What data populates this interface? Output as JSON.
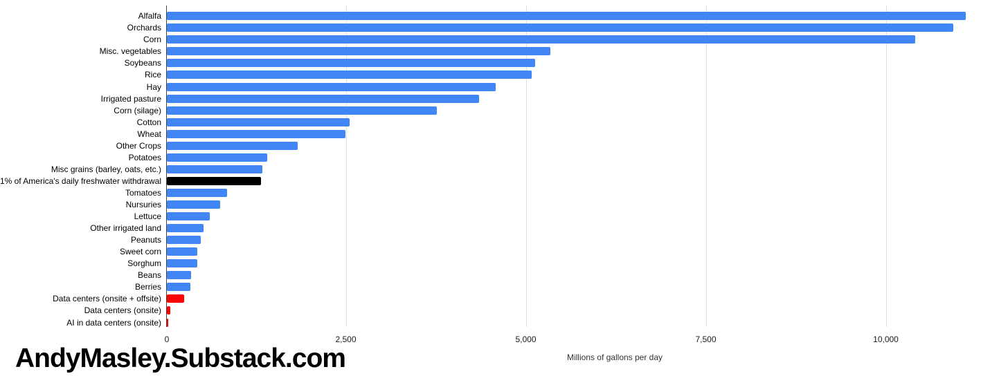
{
  "watermark": "AndyMasley.Substack.com",
  "axis": {
    "tick_labels": [
      "0",
      "2,500",
      "5,000",
      "7,500",
      "10,000"
    ]
  },
  "chart_data": {
    "type": "bar",
    "orientation": "horizontal",
    "title": "",
    "xlabel": "Millions of gallons per day",
    "ylabel": "",
    "xlim": [
      0,
      11700
    ],
    "xticks": [
      0,
      2500,
      5000,
      7500,
      10000
    ],
    "grid": true,
    "legend": "none",
    "categories": [
      "Alfalfa",
      "Orchards",
      "Corn",
      "Misc. vegetables",
      "Soybeans",
      "Rice",
      "Hay",
      "Irrigated pasture",
      "Corn (silage)",
      "Cotton",
      "Wheat",
      "Other Crops",
      "Potatoes",
      "Misc grains (barley, oats, etc.)",
      "1% of America's daily freshwater withdrawal",
      "Tomatoes",
      "Nursuries",
      "Lettuce",
      "Other irrigated land",
      "Peanuts",
      "Sweet corn",
      "Sorghum",
      "Beans",
      "Berries",
      "Data centers (onsite + offsite)",
      "Data centers (onsite)",
      "AI in data centers (onsite)"
    ],
    "values": [
      11100,
      10930,
      10400,
      5330,
      5120,
      5070,
      4570,
      4340,
      3755,
      2545,
      2485,
      1825,
      1395,
      1330,
      1310,
      845,
      745,
      605,
      513,
      478,
      424,
      424,
      340,
      332,
      245,
      55,
      25
    ],
    "bar_colors": [
      "#4285f4",
      "#4285f4",
      "#4285f4",
      "#4285f4",
      "#4285f4",
      "#4285f4",
      "#4285f4",
      "#4285f4",
      "#4285f4",
      "#4285f4",
      "#4285f4",
      "#4285f4",
      "#4285f4",
      "#4285f4",
      "#000000",
      "#4285f4",
      "#4285f4",
      "#4285f4",
      "#4285f4",
      "#4285f4",
      "#4285f4",
      "#4285f4",
      "#4285f4",
      "#4285f4",
      "#ff0000",
      "#ff0000",
      "#ff0000"
    ],
    "color_legend": {
      "crops_blue": "#4285f4",
      "reference_black": "#000000",
      "data_centers_red": "#ff0000"
    }
  }
}
